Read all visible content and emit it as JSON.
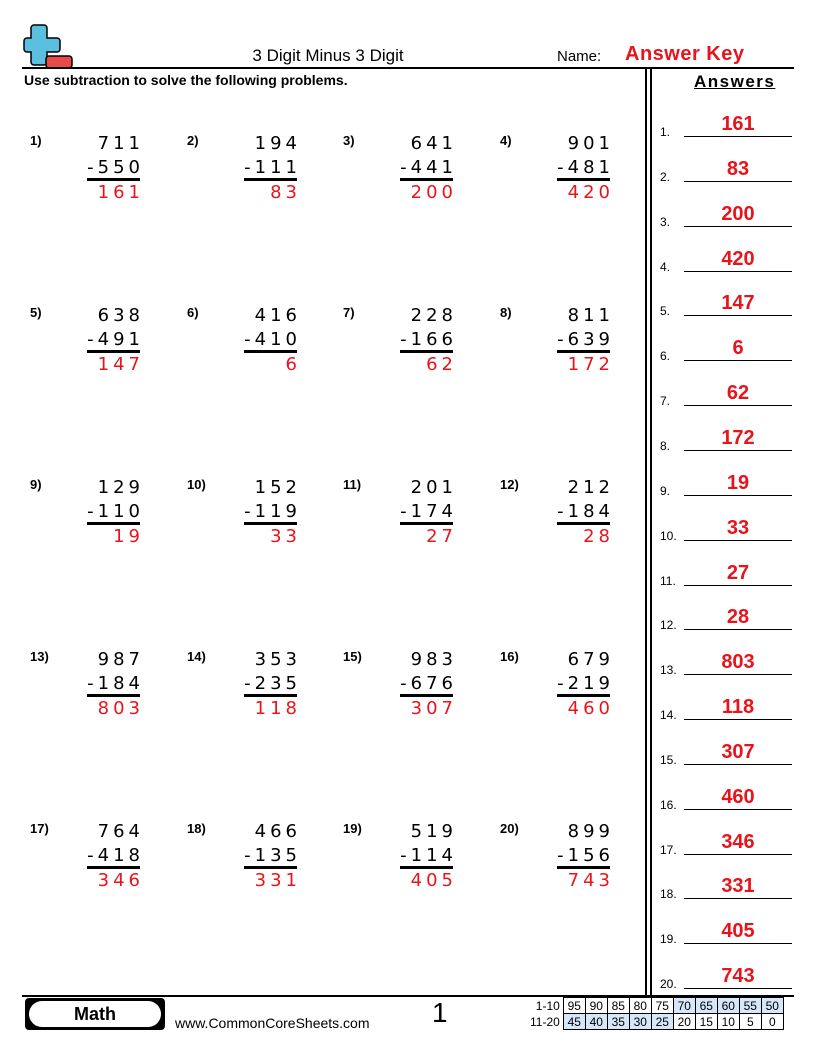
{
  "header": {
    "title": "3 Digit Minus 3 Digit",
    "name_label": "Name:",
    "name_value": "Answer Key",
    "instructions": "Use subtraction to solve the following problems.",
    "answers_heading": "Answers",
    "logo": "plus-minus-logo"
  },
  "colors": {
    "answer": "#e8141b",
    "logo_plus": "#5bbfe0",
    "logo_minus": "#e84a4a",
    "score_highlight": "#d6e6fb"
  },
  "problems": [
    {
      "n": "1)",
      "top": "711",
      "bot": "-550",
      "ans": "161"
    },
    {
      "n": "2)",
      "top": "194",
      "bot": "-111",
      "ans": "83"
    },
    {
      "n": "3)",
      "top": "641",
      "bot": "-441",
      "ans": "200"
    },
    {
      "n": "4)",
      "top": "901",
      "bot": "-481",
      "ans": "420"
    },
    {
      "n": "5)",
      "top": "638",
      "bot": "-491",
      "ans": "147"
    },
    {
      "n": "6)",
      "top": "416",
      "bot": "-410",
      "ans": "6"
    },
    {
      "n": "7)",
      "top": "228",
      "bot": "-166",
      "ans": "62"
    },
    {
      "n": "8)",
      "top": "811",
      "bot": "-639",
      "ans": "172"
    },
    {
      "n": "9)",
      "top": "129",
      "bot": "-110",
      "ans": "19"
    },
    {
      "n": "10)",
      "top": "152",
      "bot": "-119",
      "ans": "33"
    },
    {
      "n": "11)",
      "top": "201",
      "bot": "-174",
      "ans": "27"
    },
    {
      "n": "12)",
      "top": "212",
      "bot": "-184",
      "ans": "28"
    },
    {
      "n": "13)",
      "top": "987",
      "bot": "-184",
      "ans": "803"
    },
    {
      "n": "14)",
      "top": "353",
      "bot": "-235",
      "ans": "118"
    },
    {
      "n": "15)",
      "top": "983",
      "bot": "-676",
      "ans": "307"
    },
    {
      "n": "16)",
      "top": "679",
      "bot": "-219",
      "ans": "460"
    },
    {
      "n": "17)",
      "top": "764",
      "bot": "-418",
      "ans": "346"
    },
    {
      "n": "18)",
      "top": "466",
      "bot": "-135",
      "ans": "331"
    },
    {
      "n": "19)",
      "top": "519",
      "bot": "-114",
      "ans": "405"
    },
    {
      "n": "20)",
      "top": "899",
      "bot": "-156",
      "ans": "743"
    }
  ],
  "answers": [
    {
      "n": "1.",
      "v": "161"
    },
    {
      "n": "2.",
      "v": "83"
    },
    {
      "n": "3.",
      "v": "200"
    },
    {
      "n": "4.",
      "v": "420"
    },
    {
      "n": "5.",
      "v": "147"
    },
    {
      "n": "6.",
      "v": "6"
    },
    {
      "n": "7.",
      "v": "62"
    },
    {
      "n": "8.",
      "v": "172"
    },
    {
      "n": "9.",
      "v": "19"
    },
    {
      "n": "10.",
      "v": "33"
    },
    {
      "n": "11.",
      "v": "27"
    },
    {
      "n": "12.",
      "v": "28"
    },
    {
      "n": "13.",
      "v": "803"
    },
    {
      "n": "14.",
      "v": "118"
    },
    {
      "n": "15.",
      "v": "307"
    },
    {
      "n": "16.",
      "v": "460"
    },
    {
      "n": "17.",
      "v": "346"
    },
    {
      "n": "18.",
      "v": "331"
    },
    {
      "n": "19.",
      "v": "405"
    },
    {
      "n": "20.",
      "v": "743"
    }
  ],
  "footer": {
    "subject": "Math",
    "site": "www.CommonCoreSheets.com",
    "page": "1",
    "score_rows": [
      {
        "label": "1-10",
        "cells": [
          "95",
          "90",
          "85",
          "80",
          "75",
          "70",
          "65",
          "60",
          "55",
          "50"
        ],
        "highlight": [
          false,
          false,
          false,
          false,
          false,
          true,
          true,
          true,
          true,
          true
        ]
      },
      {
        "label": "11-20",
        "cells": [
          "45",
          "40",
          "35",
          "30",
          "25",
          "20",
          "15",
          "10",
          "5",
          "0"
        ],
        "highlight": [
          true,
          true,
          true,
          true,
          true,
          false,
          false,
          false,
          false,
          false
        ]
      }
    ]
  }
}
